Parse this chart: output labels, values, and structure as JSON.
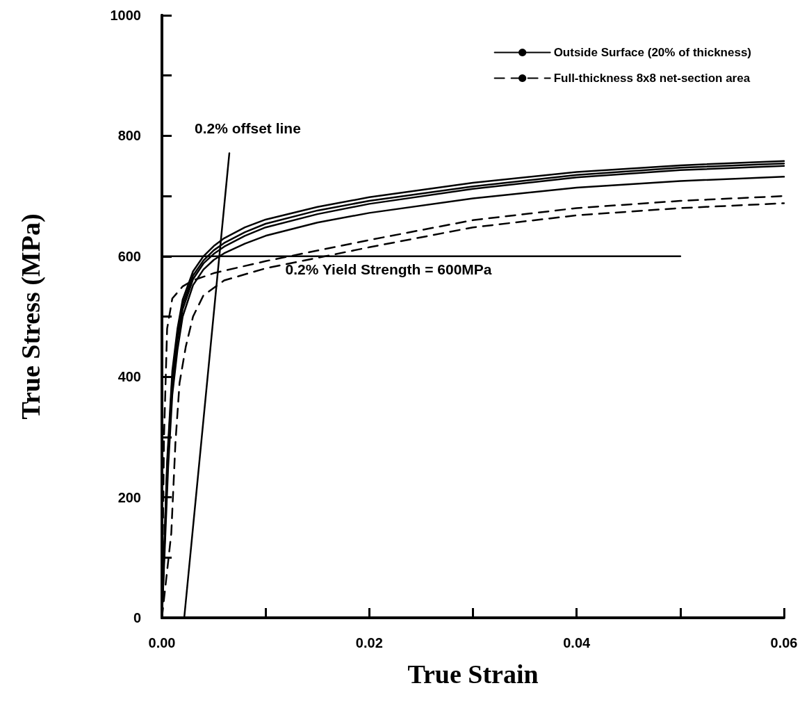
{
  "chart_data": {
    "type": "line",
    "xlabel": "True Strain",
    "ylabel": "True Stress (MPa)",
    "xlim": [
      0,
      0.06
    ],
    "ylim": [
      0,
      1000
    ],
    "xticks": [
      {
        "value": 0,
        "label": "0.00"
      },
      {
        "value": 0.01,
        "label": null
      },
      {
        "value": 0.02,
        "label": "0.02"
      },
      {
        "value": 0.03,
        "label": null
      },
      {
        "value": 0.04,
        "label": "0.04"
      },
      {
        "value": 0.05,
        "label": null
      },
      {
        "value": 0.06,
        "label": "0.06"
      }
    ],
    "yticks": [
      0,
      {
        "value": 100,
        "label": null
      },
      200,
      {
        "value": 300,
        "label": null
      },
      400,
      {
        "value": 500,
        "label": null
      },
      600,
      {
        "value": 700,
        "label": null
      },
      800,
      {
        "value": 900,
        "label": null
      },
      1000
    ],
    "grid": false,
    "legend": "top right",
    "marker": "none",
    "annotations": [
      {
        "text": "0.2% offset line",
        "x": 0.0065,
        "y": 771
      },
      {
        "text": "0.2% Yield Strength = 600MPa",
        "x": 0.0119,
        "y": 600
      }
    ],
    "series": [
      {
        "name": "Outside Surface (20% of thickness)",
        "color": "#000000",
        "line_style": "solid",
        "x": [
          0,
          0.0005,
          0.001,
          0.0015,
          0.002,
          0.003,
          0.004,
          0.005,
          0.006,
          0.008,
          0.01,
          0.015,
          0.02,
          0.03,
          0.04,
          0.05,
          0.06
        ],
        "values": [
          0,
          260,
          410,
          480,
          528,
          575,
          600,
          617,
          630,
          648,
          661,
          682,
          698,
          722,
          740,
          751,
          758
        ]
      },
      {
        "color": "#000000",
        "line_style": "solid",
        "x": [
          0,
          0.0005,
          0.001,
          0.0015,
          0.002,
          0.003,
          0.004,
          0.005,
          0.006,
          0.008,
          0.01,
          0.015,
          0.02,
          0.03,
          0.04,
          0.05,
          0.06
        ],
        "values": [
          0,
          250,
          400,
          470,
          520,
          568,
          593,
          610,
          622,
          640,
          654,
          676,
          692,
          716,
          735,
          747,
          754
        ]
      },
      {
        "color": "#000000",
        "line_style": "solid",
        "x": [
          0,
          0.0005,
          0.001,
          0.0015,
          0.002,
          0.003,
          0.004,
          0.005,
          0.006,
          0.008,
          0.01,
          0.015,
          0.02,
          0.03,
          0.04,
          0.05,
          0.06
        ],
        "values": [
          0,
          240,
          390,
          462,
          512,
          562,
          588,
          604,
          616,
          634,
          648,
          670,
          687,
          712,
          731,
          743,
          750
        ]
      },
      {
        "color": "#000000",
        "line_style": "solid",
        "x": [
          0,
          0.0006,
          0.001,
          0.0015,
          0.002,
          0.003,
          0.004,
          0.005,
          0.006,
          0.008,
          0.01,
          0.015,
          0.02,
          0.03,
          0.04,
          0.05,
          0.06
        ],
        "values": [
          0,
          250,
          370,
          445,
          500,
          552,
          578,
          594,
          605,
          621,
          634,
          656,
          672,
          696,
          714,
          725,
          732
        ]
      },
      {
        "name": "Full-thickness 8x8 net-section area",
        "color": "#000000",
        "line_style": "dashed",
        "x": [
          0,
          0.0009,
          0.0013,
          0.0017,
          0.0023,
          0.003,
          0.004,
          0.006,
          0.01,
          0.02,
          0.03,
          0.04,
          0.05,
          0.06
        ],
        "values": [
          0,
          140,
          290,
          390,
          450,
          500,
          535,
          560,
          580,
          615,
          648,
          668,
          680,
          688
        ]
      },
      {
        "color": "#000000",
        "line_style": "dashed",
        "x": [
          0,
          0.0002,
          0.0005,
          0.001,
          0.002,
          0.003,
          0.005,
          0.01,
          0.02,
          0.03,
          0.04,
          0.05,
          0.06
        ],
        "values": [
          0,
          300,
          480,
          530,
          550,
          560,
          572,
          592,
          627,
          660,
          680,
          692,
          700
        ]
      },
      {
        "color": "#000000",
        "line_style": "solid",
        "x": [
          0,
          0.05
        ],
        "values": [
          600,
          600
        ]
      },
      {
        "color": "#000000",
        "line_style": "solid",
        "x": [
          0.00215,
          0.0065
        ],
        "values": [
          0,
          771
        ]
      }
    ]
  }
}
